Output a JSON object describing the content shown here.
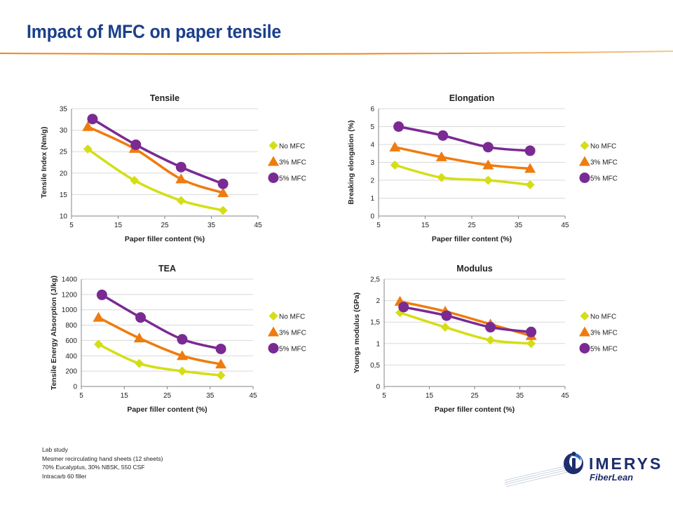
{
  "slide": {
    "title": "Impact of MFC on paper tensile"
  },
  "colors": {
    "title": "#1b3f8b",
    "accent_orange": "#e8891d",
    "no_mfc": "#d4de16",
    "mfc_3": "#f07b0e",
    "mfc_5": "#7a2a93",
    "logo_blue": "#1e2d6b"
  },
  "footnote": {
    "lines": [
      "Lab study",
      "Mesmer recirculating hand sheets (12 sheets)",
      "70% Eucalyptus, 30% NBSK, 550 CSF",
      "Intracarb 60  filler"
    ]
  },
  "logo": {
    "name": "IMERYS",
    "sub": "FiberLean"
  },
  "chart_data": [
    {
      "type": "line",
      "title": "Tensile",
      "xlabel": "Paper filler content  (%)",
      "ylabel": "Tensile Index (Nm/g)",
      "xlim": [
        5,
        45
      ],
      "ylim": [
        10,
        35
      ],
      "xticks": [
        5,
        15,
        25,
        35,
        45
      ],
      "yticks": [
        10,
        15,
        20,
        25,
        30,
        35
      ],
      "ytick_labels": [
        "10",
        "15",
        "20",
        "25",
        "30",
        "35"
      ],
      "grid": "horizontal",
      "legend": "right",
      "series": [
        {
          "name": "No MFC",
          "marker": "diamond",
          "color": "#d4de16",
          "x": [
            8.5,
            18.5,
            28.5,
            37.5
          ],
          "y": [
            25.6,
            18.3,
            13.6,
            11.3
          ]
        },
        {
          "name": "3% MFC",
          "marker": "triangle",
          "color": "#f07b0e",
          "x": [
            8.5,
            18.5,
            28.5,
            37.5
          ],
          "y": [
            30.8,
            25.7,
            18.6,
            15.4
          ]
        },
        {
          "name": "5% MFC",
          "marker": "circle",
          "color": "#7a2a93",
          "x": [
            9.5,
            18.8,
            28.5,
            37.5
          ],
          "y": [
            32.6,
            26.6,
            21.4,
            17.5
          ]
        }
      ]
    },
    {
      "type": "line",
      "title": "Elongation",
      "xlabel": "Paper filler content  (%)",
      "ylabel": "Breaking elongation (%)",
      "xlim": [
        5,
        45
      ],
      "ylim": [
        0,
        6
      ],
      "xticks": [
        5,
        15,
        25,
        35,
        45
      ],
      "yticks": [
        0,
        1,
        2,
        3,
        4,
        5,
        6
      ],
      "ytick_labels": [
        "0",
        "1",
        "2",
        "3",
        "4",
        "5",
        "6"
      ],
      "grid": "horizontal",
      "legend": "right",
      "series": [
        {
          "name": "No MFC",
          "marker": "diamond",
          "color": "#d4de16",
          "x": [
            8.5,
            18.5,
            28.5,
            37.5
          ],
          "y": [
            2.85,
            2.15,
            2.0,
            1.75
          ]
        },
        {
          "name": "3% MFC",
          "marker": "triangle",
          "color": "#f07b0e",
          "x": [
            8.5,
            18.5,
            28.5,
            37.5
          ],
          "y": [
            3.85,
            3.3,
            2.85,
            2.65
          ]
        },
        {
          "name": "5% MFC",
          "marker": "circle",
          "color": "#7a2a93",
          "x": [
            9.3,
            18.8,
            28.5,
            37.5
          ],
          "y": [
            5.0,
            4.5,
            3.85,
            3.65
          ]
        }
      ]
    },
    {
      "type": "line",
      "title": "TEA",
      "xlabel": "Paper filler content  (%)",
      "ylabel": "Tensile Energy Absorption (J/kg)",
      "xlim": [
        5,
        45
      ],
      "ylim": [
        0,
        1400
      ],
      "xticks": [
        5,
        15,
        25,
        35,
        45
      ],
      "yticks": [
        0,
        200,
        400,
        600,
        800,
        1000,
        1200,
        1400
      ],
      "ytick_labels": [
        "0",
        "200",
        "400",
        "600",
        "800",
        "1000",
        "1200",
        "1400"
      ],
      "grid": "horizontal",
      "legend": "right",
      "series": [
        {
          "name": "No MFC",
          "marker": "diamond",
          "color": "#d4de16",
          "x": [
            9.0,
            18.5,
            28.5,
            37.5
          ],
          "y": [
            550,
            300,
            200,
            145
          ]
        },
        {
          "name": "3% MFC",
          "marker": "triangle",
          "color": "#f07b0e",
          "x": [
            9.0,
            18.5,
            28.5,
            37.5
          ],
          "y": [
            900,
            630,
            400,
            290
          ]
        },
        {
          "name": "5% MFC",
          "marker": "circle",
          "color": "#7a2a93",
          "x": [
            9.8,
            18.8,
            28.5,
            37.5
          ],
          "y": [
            1195,
            900,
            615,
            490
          ]
        }
      ]
    },
    {
      "type": "line",
      "title": "Modulus",
      "xlabel": "Paper filler content  (%)",
      "ylabel": "Youngs modulus (GPa)",
      "xlim": [
        5,
        45
      ],
      "ylim": [
        0,
        2.5
      ],
      "xticks": [
        5,
        15,
        25,
        35,
        45
      ],
      "yticks": [
        0,
        0.5,
        1,
        1.5,
        2,
        2.5
      ],
      "ytick_labels": [
        "0",
        "0,5",
        "1",
        "1,5",
        "2",
        "2,5"
      ],
      "grid": "horizontal",
      "legend": "right",
      "series": [
        {
          "name": "No MFC",
          "marker": "diamond",
          "color": "#d4de16",
          "x": [
            8.5,
            18.5,
            28.5,
            37.5
          ],
          "y": [
            1.72,
            1.38,
            1.08,
            1.0
          ]
        },
        {
          "name": "3% MFC",
          "marker": "triangle",
          "color": "#f07b0e",
          "x": [
            8.5,
            18.5,
            28.5,
            37.5
          ],
          "y": [
            1.98,
            1.75,
            1.45,
            1.18
          ]
        },
        {
          "name": "5% MFC",
          "marker": "circle",
          "color": "#7a2a93",
          "x": [
            9.3,
            18.8,
            28.5,
            37.5
          ],
          "y": [
            1.85,
            1.65,
            1.38,
            1.27
          ]
        }
      ]
    }
  ]
}
